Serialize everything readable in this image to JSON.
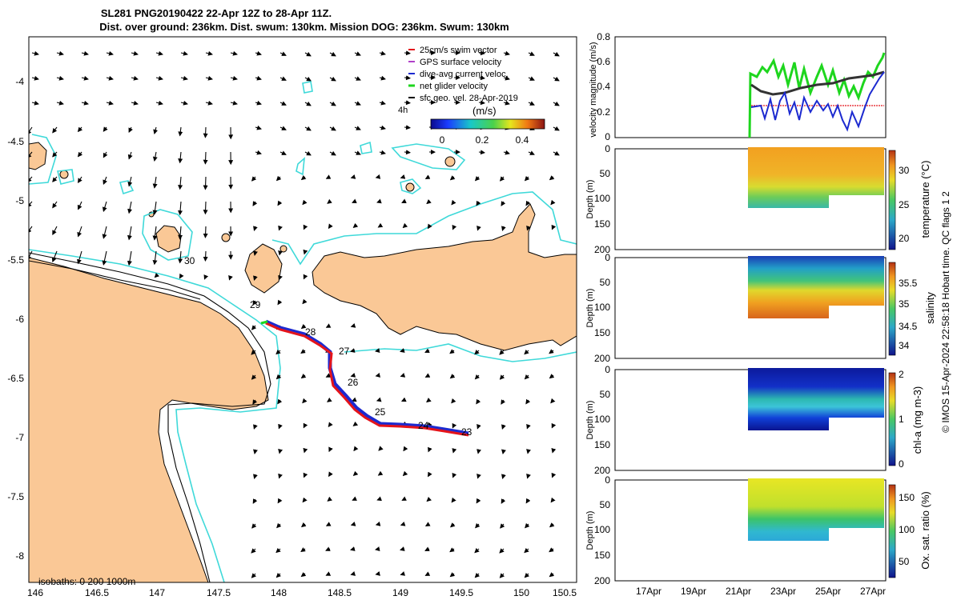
{
  "title": {
    "line1": "SL281 PNG20190422 22-Apr 12Z to 28-Apr 11Z.",
    "line2": "Dist. over ground: 236km. Dist. swum: 130km. Mission DOG: 236km. Swum: 130km"
  },
  "map": {
    "x_ticks": [
      "146",
      "146.5",
      "147",
      "147.5",
      "148",
      "148.5",
      "149",
      "149.5",
      "150",
      "150.5"
    ],
    "y_ticks": [
      "-4",
      "-4.5",
      "-5",
      "-5.5",
      "-6",
      "-6.5",
      "-7",
      "-7.5",
      "-8"
    ],
    "legend": [
      {
        "label": "25cm/s swim vector",
        "color": "#e4141b"
      },
      {
        "label": "GPS surface velocity",
        "color": "#b040c8"
      },
      {
        "label": "dive-avg current veloc.",
        "color": "#1c2ad0"
      },
      {
        "label": "net glider velocity",
        "color": "#1ed61e"
      },
      {
        "label": "sfc geo. vel. 28-Apr-2019",
        "color": "#000000"
      }
    ],
    "scale_label": "4h",
    "colorbar_unit": "(m/s)",
    "colorbar_ticks": [
      "0",
      "0.2",
      "0.4"
    ],
    "day_labels": [
      "23",
      "24",
      "25",
      "26",
      "27",
      "28",
      "29",
      "30"
    ],
    "isobaths_label": "isobaths: 0   200  1000m"
  },
  "velocity_panel": {
    "ylabel": "velocity magnitude (m/s)",
    "y_ticks": [
      "0",
      "0.2",
      "0.4",
      "0.6",
      "0.8"
    ]
  },
  "profile_panels": [
    {
      "name": "temperature",
      "ylabel": "Depth (m)",
      "cbar_label": "temperature (°C)",
      "cbar_ticks": [
        "20",
        "25",
        "30"
      ]
    },
    {
      "name": "salinity",
      "ylabel": "Depth (m)",
      "cbar_label": "salinity",
      "cbar_ticks": [
        "34",
        "34.5",
        "35",
        "35.5"
      ]
    },
    {
      "name": "chl-a",
      "ylabel": "Depth (m)",
      "cbar_label": "chl-a (mg m-3)",
      "cbar_ticks": [
        "0",
        "1",
        "2"
      ]
    },
    {
      "name": "oxygen",
      "ylabel": "Depth (m)",
      "cbar_label": "Ox. sat. ratio (%)",
      "cbar_ticks": [
        "50",
        "100",
        "150"
      ]
    }
  ],
  "depth_ticks": [
    "0",
    "50",
    "100",
    "150",
    "200"
  ],
  "date_ticks": [
    "17Apr",
    "19Apr",
    "21Apr",
    "23Apr",
    "25Apr",
    "27Apr"
  ],
  "credit": "© IMOS 15-Apr-2024 22:58:18 Hobart time. QC flags 1  2"
}
